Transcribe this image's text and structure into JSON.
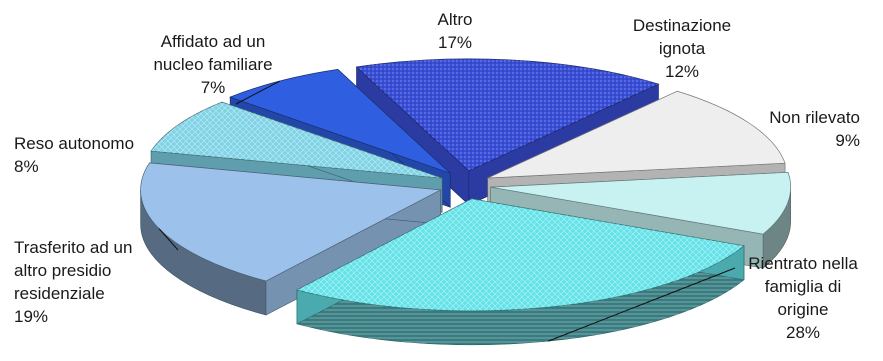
{
  "chart_data": {
    "type": "pie",
    "variant": "exploded-3d",
    "slices": [
      {
        "name": "Altro",
        "label_lines": [
          "Altro"
        ],
        "value": 17,
        "value_label": "17%",
        "color": "#3a4fd8",
        "pattern": "dots"
      },
      {
        "name": "Destinazione ignota",
        "label_lines": [
          "Destinazione",
          "ignota"
        ],
        "value": 12,
        "value_label": "12%",
        "color": "#eeeeee",
        "pattern": "none"
      },
      {
        "name": "Non rilevato",
        "label_lines": [
          "Non rilevato"
        ],
        "value": 9,
        "value_label": "9%",
        "color": "#c8f2f2",
        "pattern": "none"
      },
      {
        "name": "Rientrato nella famiglia di origine",
        "label_lines": [
          "Rientrato nella",
          "famiglia di",
          "origine"
        ],
        "value": 28,
        "value_label": "28%",
        "color": "#63e2e8",
        "pattern": "diamond"
      },
      {
        "name": "Trasferito ad un altro presidio residenziale",
        "label_lines": [
          "Trasferito ad un",
          "altro presidio",
          "residenziale"
        ],
        "value": 19,
        "value_label": "19%",
        "color": "#9cc2ec",
        "pattern": "none"
      },
      {
        "name": "Reso autonomo",
        "label_lines": [
          "Reso autonomo"
        ],
        "value": 8,
        "value_label": "8%",
        "color": "#7ed3e6",
        "pattern": "diamond"
      },
      {
        "name": "Affidato ad un nucleo familiare",
        "label_lines": [
          "Affidato ad un",
          "nucleo familiare"
        ],
        "value": 7,
        "value_label": "7%",
        "color": "#2f5fe0",
        "pattern": "none"
      }
    ]
  }
}
